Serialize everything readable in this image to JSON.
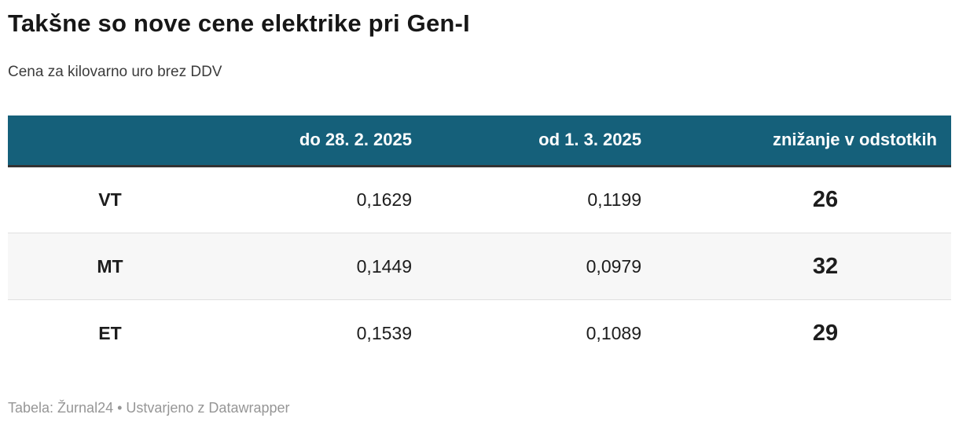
{
  "header": {
    "title": "Takšne so nove cene elektrike pri Gen-I",
    "subtitle": "Cena za kilovarno uro brez DDV"
  },
  "chart_data": {
    "type": "table",
    "title": "Takšne so nove cene elektrike pri Gen-I",
    "subtitle": "Cena za kilovarno uro brez DDV",
    "columns": [
      "",
      "do 28. 2. 2025",
      "od 1. 3. 2025",
      "znižanje v odstotkih"
    ],
    "rows": [
      {
        "label": "VT",
        "price_until": "0,1629",
        "price_from": "0,1199",
        "reduction_pct": "26"
      },
      {
        "label": "MT",
        "price_until": "0,1449",
        "price_from": "0,0979",
        "reduction_pct": "32"
      },
      {
        "label": "ET",
        "price_until": "0,1539",
        "price_from": "0,1089",
        "reduction_pct": "29"
      }
    ]
  },
  "footer": {
    "credit": "Tabela: Žurnal24 • Ustvarjeno z Datawrapper"
  },
  "colors": {
    "header_bg": "#15607a",
    "header_text": "#ffffff",
    "header_border": "#333333",
    "stripe_bg": "#f7f7f7",
    "row_divider": "#e0e0e0",
    "footer_text": "#969696"
  }
}
